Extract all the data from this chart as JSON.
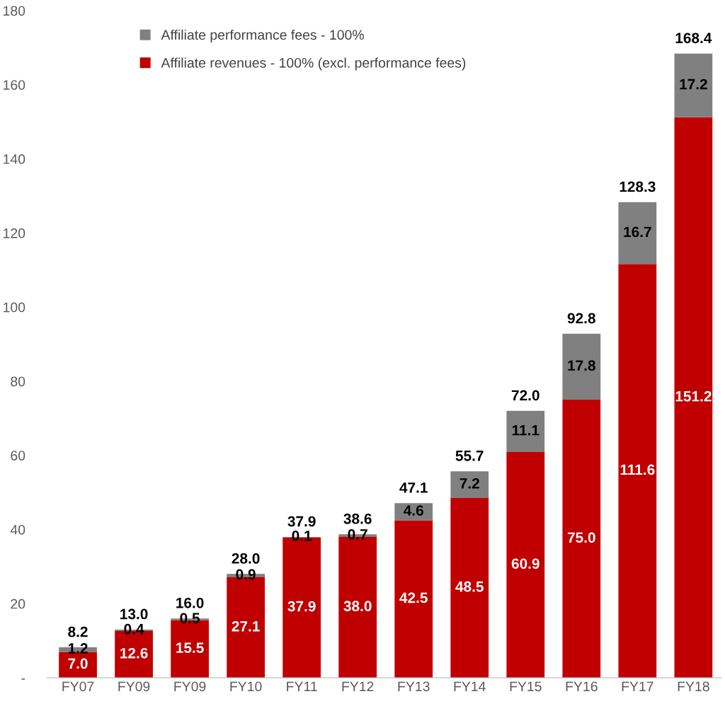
{
  "chart_data": {
    "type": "bar",
    "stacked": true,
    "categories": [
      "FY07",
      "FY09",
      "FY09",
      "FY10",
      "FY11",
      "FY12",
      "FY13",
      "FY14",
      "FY15",
      "FY16",
      "FY17",
      "FY18"
    ],
    "series": [
      {
        "name": "Affiliate revenues - 100% (excl. performance fees)",
        "color": "#c00000",
        "values": [
          7.0,
          12.6,
          15.5,
          27.1,
          37.9,
          38.0,
          42.5,
          48.5,
          60.9,
          75.0,
          111.6,
          151.2
        ],
        "value_labels": [
          "7.0",
          "12.6",
          "15.5",
          "27.1",
          "37.9",
          "38.0",
          "42.5",
          "48.5",
          "60.9",
          "75.0",
          "111.6",
          "151.2"
        ]
      },
      {
        "name": "Affiliate performance fees - 100%",
        "color": "#808080",
        "values": [
          1.2,
          0.4,
          0.5,
          0.9,
          0.1,
          0.7,
          4.6,
          7.2,
          11.1,
          17.8,
          16.7,
          17.2
        ],
        "value_labels": [
          "1.2",
          "0.4",
          "0.5",
          "0.9",
          "0.1",
          "0.7",
          "4.6",
          "7.2",
          "11.1",
          "17.8",
          "16.7",
          "17.2"
        ]
      }
    ],
    "totals": [
      "8.2",
      "13.0",
      "16.0",
      "28.0",
      "37.9",
      "38.6",
      "47.1",
      "55.7",
      "72.0",
      "92.8",
      "128.3",
      "168.4"
    ],
    "ylim": [
      0,
      180
    ],
    "yticks": [
      {
        "value": 0,
        "label": "-"
      },
      20,
      40,
      60,
      80,
      100,
      120,
      140,
      160,
      180
    ],
    "grid": false,
    "legend": "top left"
  }
}
